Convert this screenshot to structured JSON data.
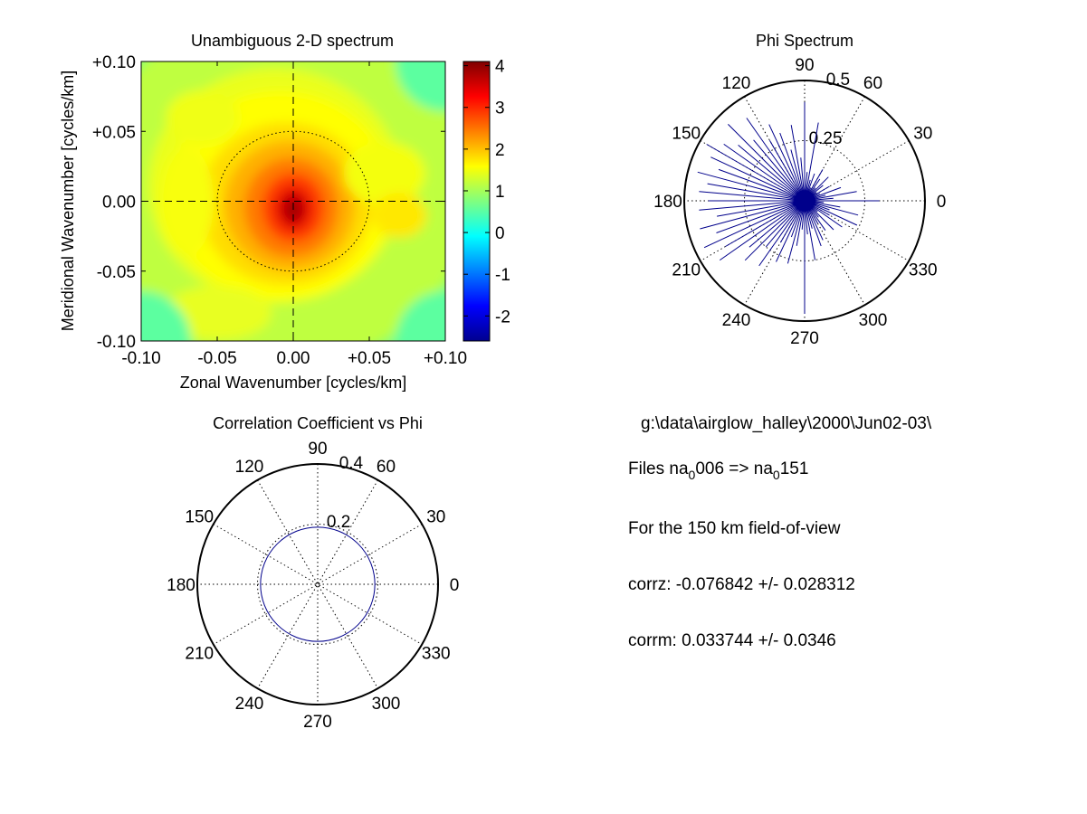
{
  "chart_data": [
    {
      "type": "heatmap",
      "title": "Unambiguous 2-D spectrum",
      "xlabel": "Zonal Wavenumber [cycles/km]",
      "ylabel": "Meridional Wavenumber [cycles/km]",
      "xlim": [
        -0.1,
        0.1
      ],
      "ylim": [
        -0.1,
        0.1
      ],
      "x_ticks": [
        "-0.10",
        "-0.05",
        "0.00",
        "+0.05",
        "+0.10"
      ],
      "y_ticks": [
        "+0.10",
        "+0.05",
        "0.00",
        "-0.05",
        "-0.10"
      ],
      "colorbar": {
        "colormap": "jet",
        "range": [
          -2.6,
          4.1
        ],
        "ticks": [
          "4",
          "3",
          "2",
          "1",
          "0",
          "-1",
          "-2"
        ]
      },
      "peak": {
        "x": 0.0,
        "y": -0.002,
        "value": 4.0
      },
      "reference_circle_radius": 0.05,
      "crosshair": "dashed at x=0 and y=0",
      "grid": false
    },
    {
      "type": "line",
      "subtype": "polar",
      "title": "Phi Spectrum",
      "angle_labels": [
        "0",
        "30",
        "60",
        "90",
        "120",
        "150",
        "180",
        "210",
        "240",
        "270",
        "300",
        "330"
      ],
      "radial_labels": [
        "0.25",
        "0.5"
      ],
      "rmax": 0.5,
      "series_color": "#00008b",
      "series": [
        {
          "theta_deg": [
            0,
            5,
            10,
            15,
            20,
            25,
            30,
            35,
            40,
            45,
            50,
            55,
            60,
            65,
            70,
            75,
            80,
            85,
            90,
            95,
            100,
            105,
            110,
            115,
            120,
            125,
            130,
            135,
            140,
            145,
            150,
            155,
            160,
            165,
            170,
            175,
            180,
            185,
            190,
            195,
            200,
            205,
            210,
            215,
            220,
            225,
            230,
            235,
            240,
            245,
            250,
            255,
            260,
            265,
            270,
            275,
            280,
            285,
            290,
            295,
            300,
            305,
            310,
            315,
            320,
            325,
            330,
            335,
            340,
            345,
            350,
            355
          ],
          "r": [
            0.31,
            0.12,
            0.22,
            0.09,
            0.16,
            0.07,
            0.12,
            0.06,
            0.1,
            0.14,
            0.07,
            0.11,
            0.15,
            0.06,
            0.12,
            0.09,
            0.33,
            0.12,
            0.41,
            0.18,
            0.32,
            0.22,
            0.3,
            0.35,
            0.29,
            0.42,
            0.33,
            0.45,
            0.36,
            0.41,
            0.47,
            0.43,
            0.38,
            0.46,
            0.41,
            0.44,
            0.4,
            0.44,
            0.37,
            0.45,
            0.39,
            0.46,
            0.38,
            0.43,
            0.3,
            0.35,
            0.25,
            0.33,
            0.2,
            0.28,
            0.16,
            0.27,
            0.19,
            0.12,
            0.47,
            0.14,
            0.25,
            0.12,
            0.2,
            0.18,
            0.11,
            0.15,
            0.09,
            0.17,
            0.07,
            0.19,
            0.12,
            0.24,
            0.11,
            0.23,
            0.15,
            0.08
          ]
        }
      ]
    },
    {
      "type": "line",
      "subtype": "polar",
      "title": "Correlation Coefficient vs Phi",
      "angle_labels": [
        "0",
        "30",
        "60",
        "90",
        "120",
        "150",
        "180",
        "210",
        "240",
        "270",
        "300",
        "330"
      ],
      "radial_labels": [
        "0.2",
        "0.4"
      ],
      "rmax": 0.4,
      "series_color": "#00008b",
      "series": [
        {
          "shape": "circle",
          "center": [
            0.0,
            0.0
          ],
          "r": 0.19
        }
      ]
    }
  ],
  "info": {
    "path": "g:\\data\\airglow_halley\\2000\\Jun02-03\\",
    "files": {
      "prefix": "Files  na",
      "from_sub": "0",
      "from_num": "006",
      "arrow": "  =>  na",
      "to_sub": "0",
      "to_num": "151"
    },
    "fov": "For the  150 km field-of-view",
    "corrz": "corrz: -0.076842 +/- 0.028312",
    "corrm": "corrm: 0.033744 +/- 0.0346"
  }
}
